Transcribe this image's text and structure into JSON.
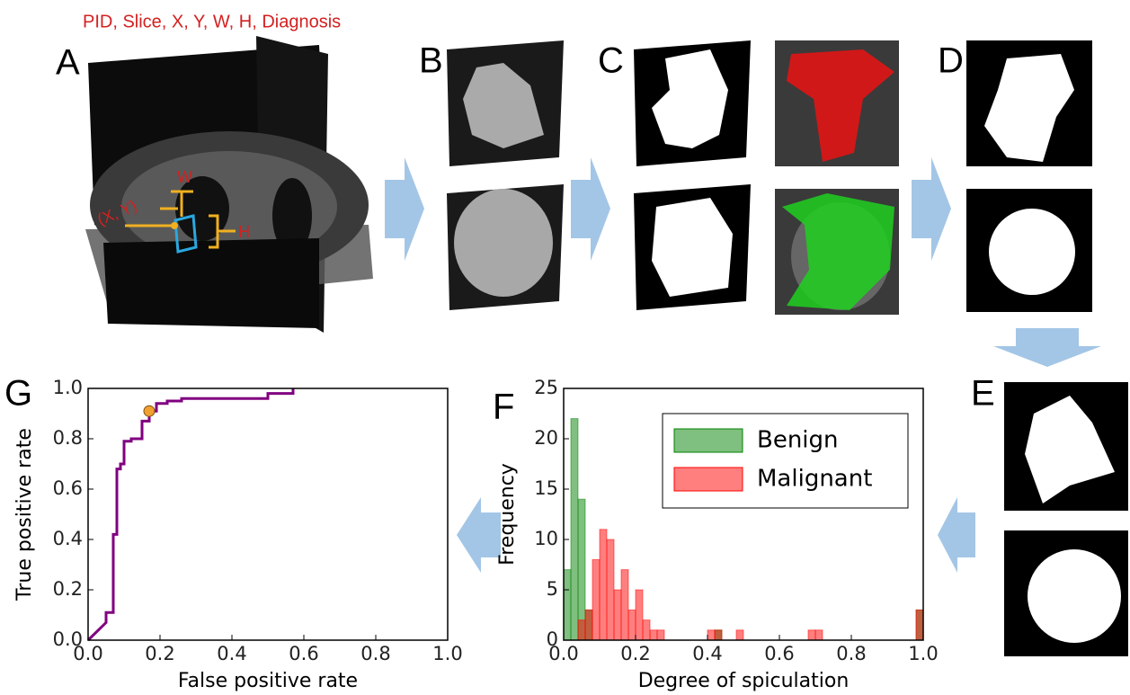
{
  "header": "PID, Slice, X, Y, W, H, Diagnosis",
  "panels": {
    "A": "A",
    "B": "B",
    "C": "C",
    "D": "D",
    "E": "E"
  },
  "annotations": {
    "w": "W",
    "xy": "(X, Y)",
    "h": "H"
  },
  "chart_data": [
    {
      "type": "line",
      "label": "G",
      "xlabel": "False positive rate",
      "ylabel": "True positive rate",
      "color": "#800080",
      "x": [
        0,
        0.05,
        0.05,
        0.07,
        0.07,
        0.08,
        0.08,
        0.09,
        0.09,
        0.1,
        0.1,
        0.12,
        0.12,
        0.15,
        0.15,
        0.17,
        0.17,
        0.19,
        0.19,
        0.22,
        0.22,
        0.26,
        0.26,
        0.5,
        0.5,
        0.57,
        0.57
      ],
      "values": [
        0,
        0.07,
        0.11,
        0.11,
        0.42,
        0.42,
        0.68,
        0.68,
        0.7,
        0.7,
        0.79,
        0.79,
        0.8,
        0.8,
        0.87,
        0.87,
        0.91,
        0.91,
        0.94,
        0.94,
        0.95,
        0.95,
        0.96,
        0.96,
        0.98,
        0.98,
        1.0
      ],
      "marker": {
        "x": 0.17,
        "y": 0.91,
        "color": "#f0a030"
      },
      "xlim": [
        0,
        1
      ],
      "ylim": [
        0,
        1
      ],
      "xticks": [
        {
          "value": 0,
          "label": "0.0"
        },
        {
          "value": 0.2,
          "label": "0.2"
        },
        {
          "value": 0.4,
          "label": "0.4"
        },
        {
          "value": 0.6,
          "label": "0.6"
        },
        {
          "value": 0.8,
          "label": "0.8"
        },
        {
          "value": 1,
          "label": "1.0"
        }
      ],
      "yticks": [
        {
          "value": 0,
          "label": "0.0"
        },
        {
          "value": 0.2,
          "label": "0.2"
        },
        {
          "value": 0.4,
          "label": "0.4"
        },
        {
          "value": 0.6,
          "label": "0.6"
        },
        {
          "value": 0.8,
          "label": "0.8"
        },
        {
          "value": 1,
          "label": "1.0"
        }
      ]
    },
    {
      "type": "histogram",
      "label": "F",
      "xlabel": "Degree of spiculation",
      "ylabel": "Frequency",
      "bins": [
        0,
        0.02,
        0.04,
        0.06,
        0.08,
        0.1,
        0.12,
        0.14,
        0.16,
        0.18,
        0.2,
        0.22,
        0.24,
        0.26,
        0.28,
        0.3,
        0.32,
        0.34,
        0.36,
        0.38,
        0.4,
        0.42,
        0.44,
        0.46,
        0.48,
        0.5,
        0.52,
        0.54,
        0.56,
        0.58,
        0.6,
        0.62,
        0.64,
        0.66,
        0.68,
        0.7,
        0.72,
        0.74,
        0.76,
        0.78,
        0.8,
        0.82,
        0.84,
        0.86,
        0.88,
        0.9,
        0.92,
        0.94,
        0.96,
        0.98,
        1.0
      ],
      "alpha": 0.5,
      "series": [
        {
          "name": "Benign",
          "color": "#008000",
          "values": [
            7,
            22,
            14,
            3,
            0,
            0,
            0,
            0,
            0,
            0,
            0,
            0,
            0,
            0,
            0,
            0,
            0,
            0,
            0,
            0,
            0,
            1,
            0,
            0,
            0,
            0,
            0,
            0,
            0,
            0,
            0,
            0,
            0,
            0,
            0,
            0,
            0,
            0,
            0,
            0,
            0,
            0,
            0,
            0,
            0,
            0,
            0,
            0,
            0,
            3
          ]
        },
        {
          "name": "Malignant",
          "color": "#ff0000",
          "values": [
            0,
            0,
            2,
            3,
            8,
            11,
            10,
            5,
            7,
            3,
            5,
            2,
            1,
            1,
            0,
            0,
            0,
            0,
            0,
            0,
            1,
            1,
            0,
            0,
            1,
            0,
            0,
            0,
            0,
            0,
            0,
            0,
            0,
            0,
            1,
            1,
            0,
            0,
            0,
            0,
            0,
            0,
            0,
            0,
            0,
            0,
            0,
            0,
            0,
            3
          ]
        }
      ],
      "xlim": [
        0,
        1
      ],
      "ylim": [
        0,
        25
      ],
      "xticks": [
        {
          "value": 0,
          "label": "0.0"
        },
        {
          "value": 0.2,
          "label": "0.2"
        },
        {
          "value": 0.4,
          "label": "0.4"
        },
        {
          "value": 0.6,
          "label": "0.6"
        },
        {
          "value": 0.8,
          "label": "0.8"
        },
        {
          "value": 1,
          "label": "1.0"
        }
      ],
      "yticks": [
        0,
        5,
        10,
        15,
        20,
        25
      ],
      "legend": "upper right"
    }
  ]
}
